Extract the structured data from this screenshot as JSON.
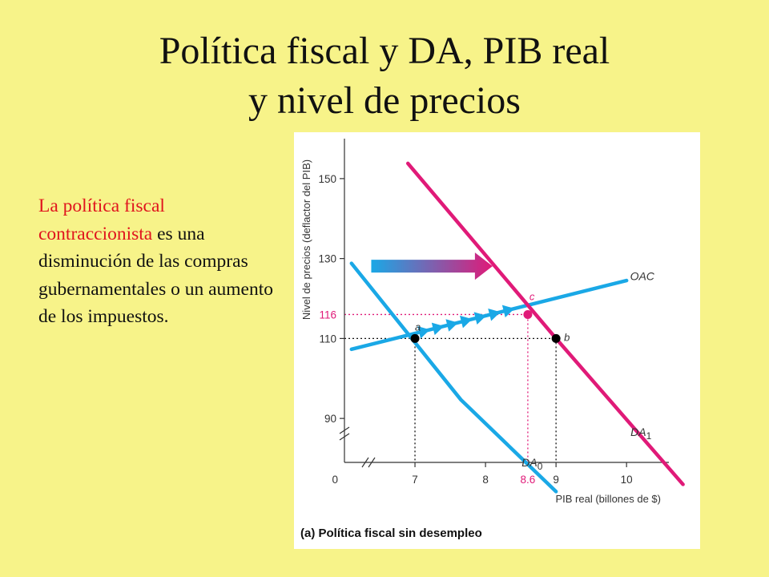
{
  "slide": {
    "title_line1": "Política fiscal y DA, PIB real",
    "title_line2": "y nivel de precios",
    "body_red": "La política fiscal contraccionista",
    "body_black": " es una disminución de las compras gubernamentales o un aumento de los impuestos."
  },
  "chart_data": {
    "type": "line",
    "title": "",
    "caption": "(a) Política fiscal sin desempleo",
    "xlabel": "PIB real (billones de $)",
    "ylabel": "Nivel de precios (deflactor del PIB)",
    "xlim": [
      6,
      10.6
    ],
    "ylim": [
      79,
      160
    ],
    "x_ticks": [
      {
        "value": 7,
        "label": "7"
      },
      {
        "value": 8,
        "label": "8"
      },
      {
        "value": 9,
        "label": "9"
      },
      {
        "value": 10,
        "label": "10"
      }
    ],
    "x_origin_label": "0",
    "y_ticks": [
      {
        "value": 90,
        "label": "90"
      },
      {
        "value": 110,
        "label": "110"
      },
      {
        "value": 130,
        "label": "130"
      },
      {
        "value": 150,
        "label": "150"
      }
    ],
    "series": [
      {
        "name": "OAC",
        "color": "#1aa8e6",
        "points": [
          [
            6.1,
            107.3
          ],
          [
            10.0,
            124.5
          ]
        ],
        "label": "OAC",
        "sub": ""
      },
      {
        "name": "DA0",
        "color": "#1aa8e6",
        "points": [
          [
            6.1,
            128.8
          ],
          [
            7.65,
            94.7
          ],
          [
            9.0,
            71.7
          ]
        ],
        "label": "DA",
        "sub": "0"
      },
      {
        "name": "DA1",
        "color": "#e01a78",
        "points": [
          [
            6.9,
            153.8
          ],
          [
            9.0,
            110.0
          ],
          [
            10.8,
            73.5
          ]
        ],
        "label": "DA",
        "sub": "1"
      }
    ],
    "points": [
      {
        "label": "a",
        "x": 7.0,
        "y": 110,
        "color": "#000000"
      },
      {
        "label": "b",
        "x": 9.0,
        "y": 110,
        "color": "#000000"
      },
      {
        "label": "c",
        "x": 8.6,
        "y": 116,
        "color": "#e01a78"
      }
    ],
    "highlight_x": {
      "value": 8.6,
      "label": "8.6",
      "color": "#e01a78"
    },
    "highlight_y": {
      "value": 116,
      "label": "116",
      "color": "#e01a78"
    },
    "arrow_colors": [
      "#1aa8e6",
      "#e01a78"
    ]
  }
}
